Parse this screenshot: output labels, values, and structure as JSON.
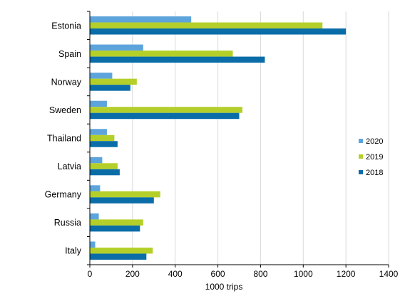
{
  "chart_data": {
    "type": "bar",
    "orientation": "horizontal",
    "categories": [
      "Estonia",
      "Spain",
      "Norway",
      "Sweden",
      "Thailand",
      "Latvia",
      "Germany",
      "Russia",
      "Italy"
    ],
    "series": [
      {
        "name": "2020",
        "color": "#5da4dc",
        "values": [
          475,
          250,
          105,
          80,
          80,
          58,
          48,
          42,
          25
        ]
      },
      {
        "name": "2019",
        "color": "#b5cf2a",
        "values": [
          1090,
          670,
          220,
          715,
          115,
          130,
          330,
          250,
          295
        ]
      },
      {
        "name": "2018",
        "color": "#0a6da8",
        "values": [
          1200,
          820,
          190,
          700,
          130,
          140,
          300,
          235,
          265
        ]
      }
    ],
    "xlabel": "1000 trips",
    "ylabel": "",
    "xlim": [
      0,
      1400
    ],
    "xticks": [
      "0",
      "200",
      "400",
      "600",
      "800",
      "1000",
      "1200",
      "1400"
    ],
    "grid": "vertical",
    "legend": {
      "position": "right",
      "order": [
        "2020",
        "2019",
        "2018"
      ]
    }
  }
}
